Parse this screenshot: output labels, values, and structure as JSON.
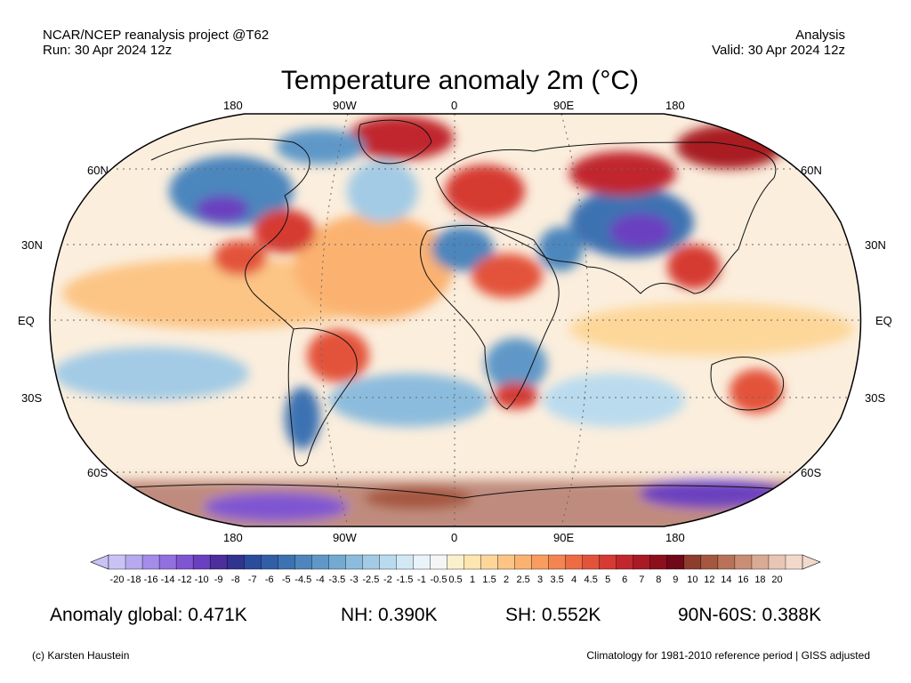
{
  "header": {
    "line1_left": "NCAR/NCEP reanalysis project @T62",
    "line2_left": "Run: 30 Apr 2024 12z",
    "line1_right": "Analysis",
    "line2_right": "Valid: 30 Apr 2024 12z"
  },
  "title": "Temperature anomaly 2m (°C)",
  "axes": {
    "lon_labels": [
      "180",
      "90W",
      "0",
      "90E",
      "180"
    ],
    "lat_labels_left": [
      "60N",
      "30N",
      "EQ",
      "30S",
      "60S"
    ],
    "lat_labels_right": [
      "60N",
      "30N",
      "EQ",
      "30S",
      "60S"
    ]
  },
  "colorbar": {
    "labels": [
      "-20",
      "-18",
      "-16",
      "-14",
      "-12",
      "-10",
      "-9",
      "-8",
      "-7",
      "-6",
      "-5",
      "-4.5",
      "-4",
      "-3.5",
      "-3",
      "-2.5",
      "-2",
      "-1.5",
      "-1",
      "-0.5",
      "0.5",
      "1",
      "1.5",
      "2",
      "2.5",
      "3",
      "3.5",
      "4",
      "4.5",
      "5",
      "6",
      "7",
      "8",
      "9",
      "10",
      "12",
      "14",
      "16",
      "18",
      "20"
    ],
    "colors": [
      "#c9c3f5",
      "#b6a9f0",
      "#a48cea",
      "#9270e0",
      "#7f55d2",
      "#6a3fc0",
      "#4c2e9e",
      "#30338f",
      "#2b4c9c",
      "#325ea8",
      "#3d72b2",
      "#4c86bd",
      "#5f98c8",
      "#74aad2",
      "#8cbcdd",
      "#a3cbe5",
      "#badbee",
      "#d2e8f5",
      "#e8f3fa",
      "#f5f5f5",
      "#fbf0cc",
      "#fde6b0",
      "#fdd79a",
      "#fcc585",
      "#fbb271",
      "#f89d5f",
      "#f48550",
      "#ee6c44",
      "#e3533b",
      "#d63a33",
      "#c1272d",
      "#a91a24",
      "#8c0f1b",
      "#70081a",
      "#8e3c2e",
      "#a5573f",
      "#b97259",
      "#ca8e75",
      "#d9aa94",
      "#e8c5b4",
      "#f2d9cc"
    ]
  },
  "stats": {
    "global": "Anomaly global: 0.471K",
    "nh": "NH: 0.390K",
    "sh": "SH: 0.552K",
    "arctic": "90N-60S: 0.388K"
  },
  "footer": {
    "left": "(c) Karsten Haustein",
    "right": "Climatology for 1981-2010 reference period | GISS adjusted"
  },
  "map": {
    "projection": "Robinson",
    "anomalies": [
      {
        "region": "north-america-north",
        "color": "#4c86bd"
      },
      {
        "region": "north-america-east",
        "color": "#d63a33"
      },
      {
        "region": "greenland",
        "color": "#c1272d"
      },
      {
        "region": "europe",
        "color": "#d63a33"
      },
      {
        "region": "central-asia",
        "color": "#6a3fc0"
      },
      {
        "region": "siberia-east",
        "color": "#a91a24"
      },
      {
        "region": "sahara",
        "color": "#4c86bd"
      },
      {
        "region": "south-america",
        "color": "#e3533b"
      },
      {
        "region": "southern-africa",
        "color": "#d63a33"
      },
      {
        "region": "antarctica-coast",
        "color": "#8e3c2e"
      }
    ]
  }
}
